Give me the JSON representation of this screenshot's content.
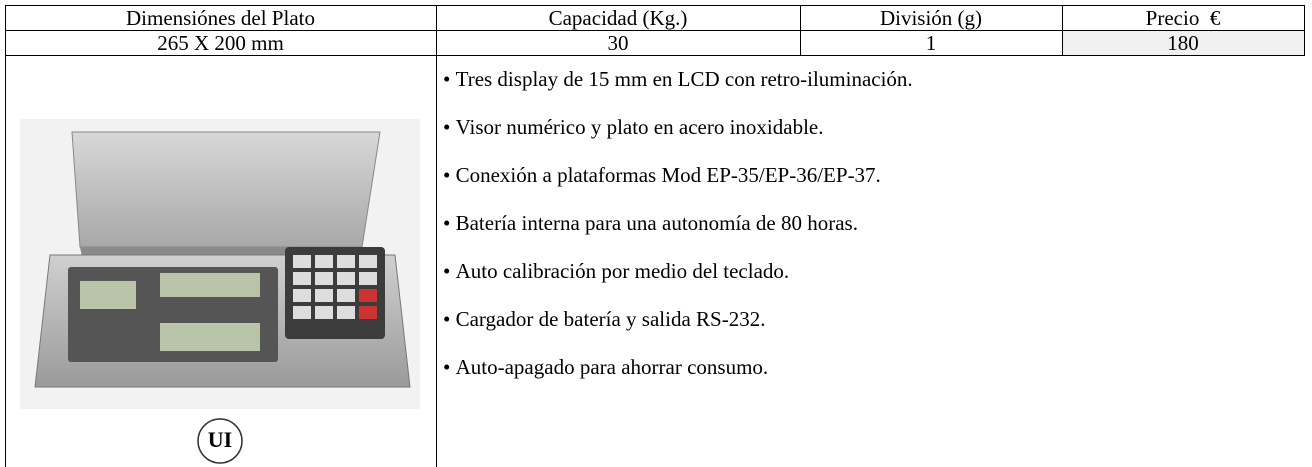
{
  "table": {
    "header": [
      "Dimensiónes del Plato",
      "Capacidad (Kg.)",
      "División (g)",
      "Precio  €"
    ],
    "row": [
      "265 X 200 mm",
      "30",
      "1",
      "180"
    ],
    "logo_text": "UI",
    "features": [
      "Tres display de 15 mm en LCD con retro-iluminación.",
      "Visor numérico y plato en acero inoxidable.",
      "Conexión a plataformas Mod EP-35/EP-36/EP-37.",
      "Batería interna para una autonomía de 80 horas.",
      "Auto calibración por medio del teclado.",
      "Cargador de batería y salida RS-232.",
      "Auto-apagado para ahorrar consumo."
    ]
  }
}
